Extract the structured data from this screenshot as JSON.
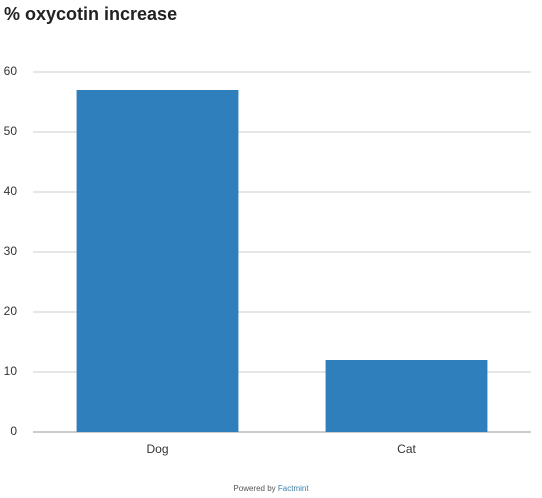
{
  "chart_data": {
    "type": "bar",
    "title": "% oxycotin increase",
    "categories": [
      "Dog",
      "Cat"
    ],
    "values": [
      57,
      12
    ],
    "color": "#2e7fbb",
    "ylim": [
      0,
      60
    ],
    "yticks": [
      0,
      10,
      20,
      30,
      40,
      50,
      60
    ],
    "grid": true,
    "credit": {
      "prefix": "Powered by",
      "brand": "Factmint"
    }
  }
}
